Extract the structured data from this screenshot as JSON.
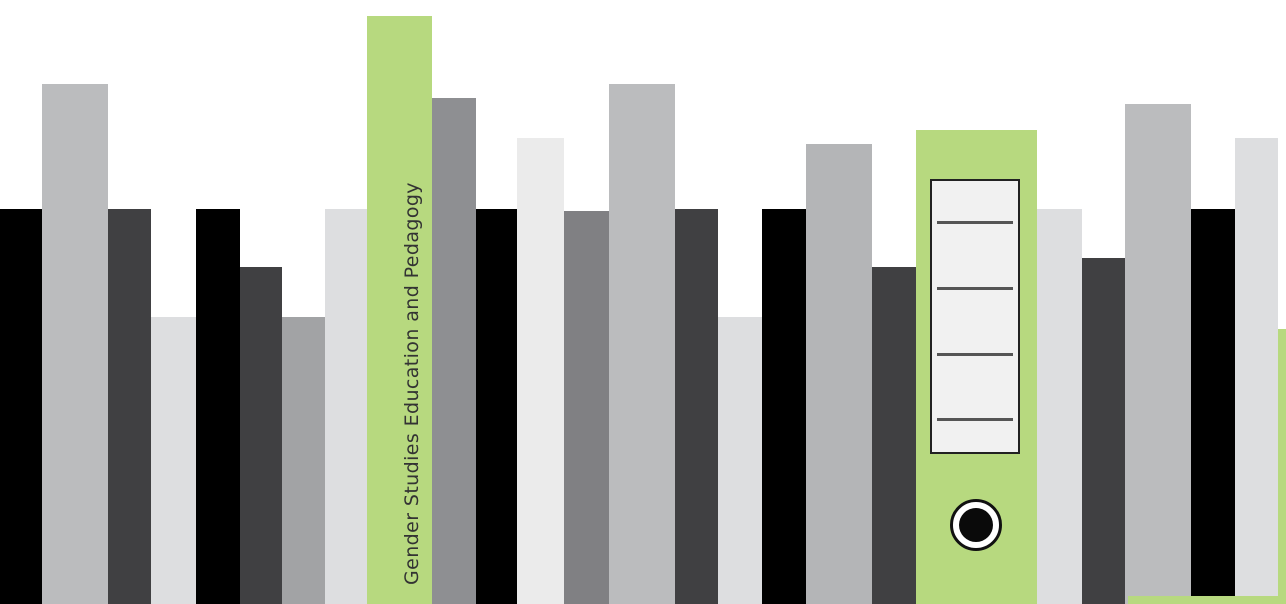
{
  "shelf": {
    "book_title": "Gender Studies Education and Pedagogy"
  },
  "colors": {
    "green": "#b7d97f",
    "black": "#000000",
    "dark_gray": "#404042",
    "mid_gray": "#808083",
    "gray": "#a2a3a5",
    "light_gray": "#bbbcbe",
    "pale_gray": "#dddee0",
    "near_white": "#ebebeb"
  }
}
